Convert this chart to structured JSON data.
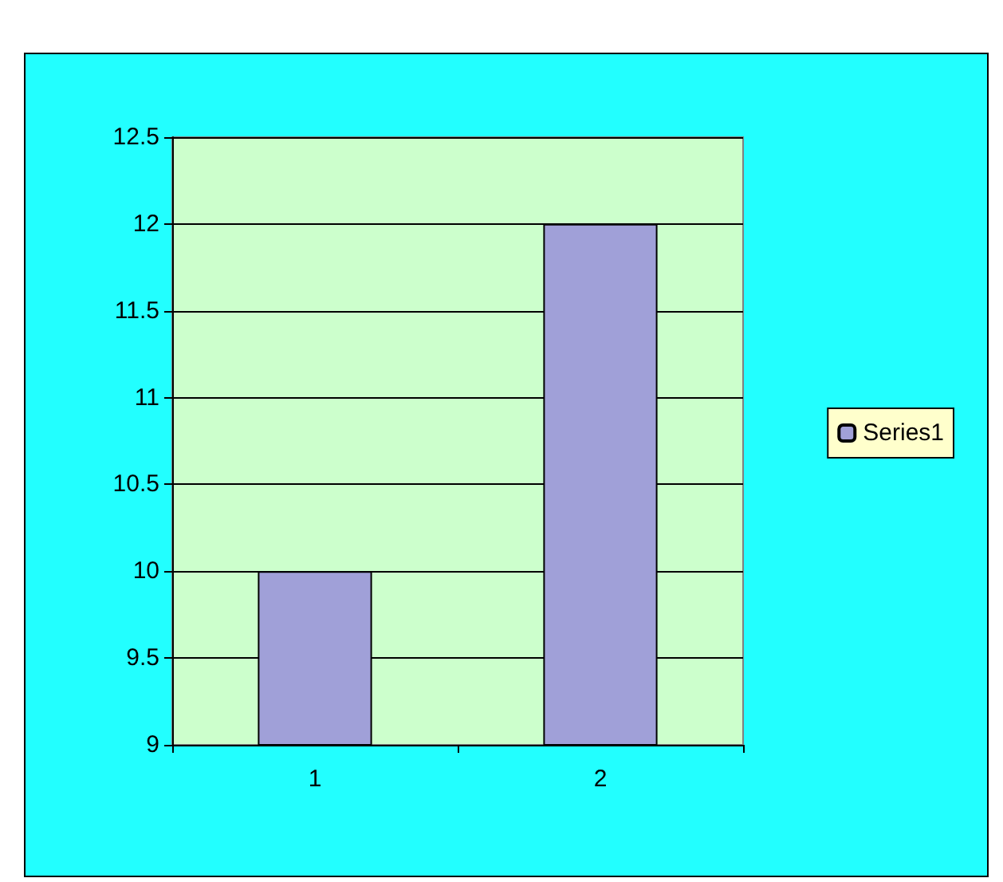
{
  "chart_data": {
    "type": "bar",
    "categories": [
      "1",
      "2"
    ],
    "series": [
      {
        "name": "Series1",
        "color": "#a0a0d8",
        "values": [
          10,
          12
        ]
      }
    ],
    "ylim": [
      9,
      12.5
    ],
    "yticks": [
      9,
      9.5,
      10,
      10.5,
      11,
      11.5,
      12,
      12.5
    ],
    "grid": "y",
    "legend": "right"
  }
}
